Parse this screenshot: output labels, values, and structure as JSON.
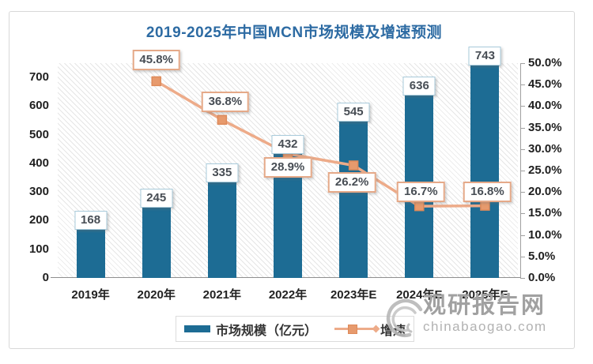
{
  "chart_data": {
    "type": "bar",
    "title": "2019-2025年中国MCN市场规模及增速预测",
    "categories": [
      "2019年",
      "2020年",
      "2021年",
      "2022年",
      "2023年E",
      "2024年E",
      "2025年E"
    ],
    "series": [
      {
        "name": "市场规模（亿元）",
        "type": "bar",
        "axis": "left",
        "values": [
          168,
          245,
          335,
          432,
          545,
          636,
          743
        ],
        "labels": [
          "168",
          "245",
          "335",
          "432",
          "545",
          "636",
          "743"
        ]
      },
      {
        "name": "增速",
        "type": "line",
        "axis": "right",
        "unit": "%",
        "values": [
          null,
          45.8,
          36.8,
          28.9,
          26.2,
          16.7,
          16.8
        ],
        "labels": [
          "45.8%",
          "36.8%",
          "28.9%",
          "26.2%",
          "16.7%",
          "16.8%"
        ]
      }
    ],
    "left_axis": {
      "min": 0,
      "max": 750,
      "tick_values": [
        0,
        100,
        200,
        300,
        400,
        500,
        600,
        700
      ],
      "tick_labels": [
        "0",
        "100",
        "200",
        "300",
        "400",
        "500",
        "600",
        "700"
      ]
    },
    "right_axis": {
      "min": 0,
      "max": 50,
      "tick_values": [
        0,
        5,
        10,
        15,
        20,
        25,
        30,
        35,
        40,
        45,
        50
      ],
      "tick_labels": [
        "0.0%",
        "5.0%",
        "10.0%",
        "15.0%",
        "20.0%",
        "25.0%",
        "30.0%",
        "35.0%",
        "40.0%",
        "45.0%",
        "50.0%"
      ]
    },
    "legend_position": "bottom",
    "grid": false
  },
  "legend": {
    "bar_label": "市场规模（亿元）",
    "line_label": "增速"
  },
  "watermark": {
    "name": "观研报告网",
    "domain": "chinabaogao.com"
  },
  "colors": {
    "bar": "#1d6c94",
    "line": "#edab89",
    "marker": "#e79a6d",
    "marker_border": "#de8a5a",
    "title": "#2d6ba3",
    "bar_label_border": "#a9cbdb",
    "pct_label_border": "#e5a988"
  }
}
